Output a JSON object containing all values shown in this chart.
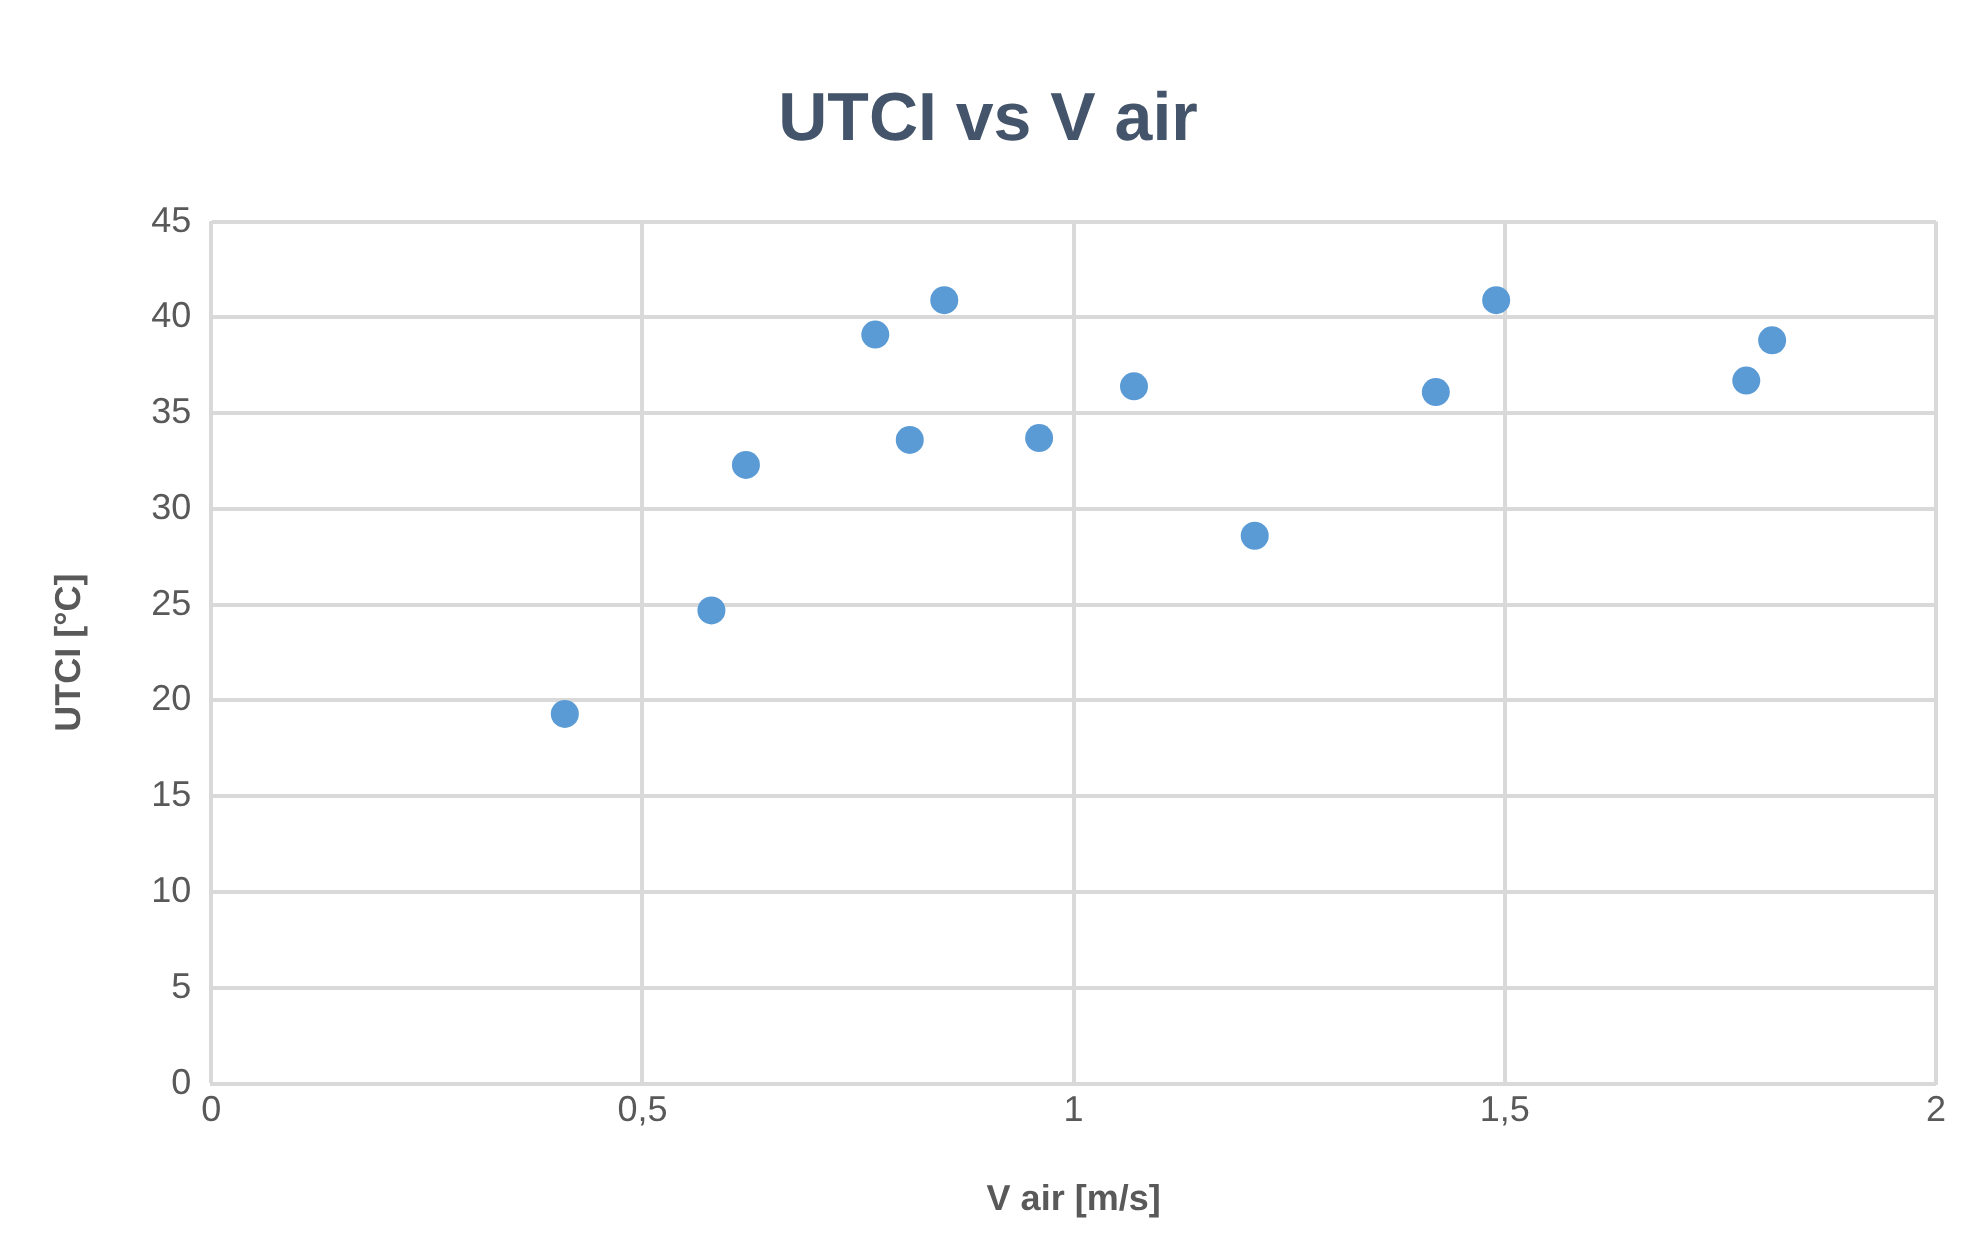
{
  "chart_data": {
    "type": "scatter",
    "title": "UTCI vs V air",
    "xlabel": "V air [m/s]",
    "ylabel": "UTCI [°C]",
    "series": [
      {
        "color": "#5b9bd5",
        "x": [
          0.41,
          0.58,
          0.62,
          0.77,
          0.81,
          0.85,
          0.96,
          1.07,
          1.21,
          1.42,
          1.49,
          1.78,
          1.81
        ],
        "values": [
          19.3,
          24.7,
          32.3,
          39.1,
          33.6,
          40.9,
          33.7,
          36.4,
          28.6,
          36.1,
          40.9,
          36.7,
          38.8
        ]
      }
    ],
    "xlim": [
      0,
      2
    ],
    "xticks": [
      0,
      {
        "value": 0.5,
        "label": "0,5"
      },
      1,
      {
        "value": 1.5,
        "label": "1,5"
      },
      2
    ],
    "ylim": [
      0,
      45
    ],
    "yticks": [
      0,
      5,
      10,
      15,
      20,
      25,
      30,
      35,
      40,
      45
    ],
    "grid": true,
    "legend": false,
    "marker": "circle"
  }
}
